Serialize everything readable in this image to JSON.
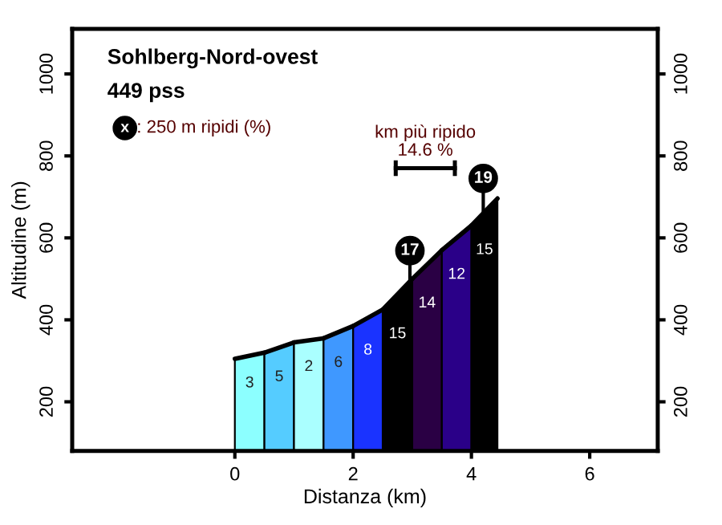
{
  "chart_data": {
    "type": "area",
    "title": "Sohlberg-Nord-ovest",
    "subtitle": "449 pss",
    "xlabel": "Distanza (km)",
    "ylabel": "Altitudine (m)",
    "xlim": [
      -2.75,
      7.15
    ],
    "xticks": [
      0,
      2,
      4,
      6
    ],
    "ylim": [
      80,
      1110
    ],
    "yticks": [
      200,
      400,
      600,
      800,
      1000
    ],
    "y2lim": [
      80,
      1110
    ],
    "y2ticks": [
      200,
      400,
      600,
      800,
      1000
    ],
    "series": [
      {
        "x": [
          0,
          0.5
        ],
        "values": [
          305,
          320
        ],
        "color": "#8cffff"
      },
      {
        "x": [
          0.5,
          1
        ],
        "values": [
          320,
          345
        ],
        "color": "#55ccff"
      },
      {
        "x": [
          1,
          1.5
        ],
        "values": [
          345,
          355
        ],
        "color": "#aaffff"
      },
      {
        "x": [
          1.5,
          2
        ],
        "values": [
          355,
          385
        ],
        "color": "#3f98ff"
      },
      {
        "x": [
          2,
          2.5
        ],
        "values": [
          385,
          425
        ],
        "color": "#1a33ff"
      },
      {
        "x": [
          2.5,
          3
        ],
        "values": [
          425,
          500
        ],
        "color": "#000000"
      },
      {
        "x": [
          3,
          3.5
        ],
        "values": [
          500,
          570
        ],
        "color": "#2a0044"
      },
      {
        "x": [
          3.5,
          4
        ],
        "values": [
          570,
          630
        ],
        "color": "#2a0088"
      },
      {
        "x": [
          4,
          4.44
        ],
        "values": [
          630,
          696
        ],
        "color": "#000000"
      },
      {
        "type": "scatter",
        "x": [
          2.96,
          4.2
        ],
        "values": [
          569,
          745
        ],
        "color": "#000000"
      },
      {
        "type": "line",
        "x": [
          2.72,
          3.72
        ],
        "values": [
          770,
          770
        ],
        "color": "#000000"
      }
    ],
    "annotations": [
      "x",
      ": 250 m ripidi (%)",
      "km più ripido\n14.6 %",
      "17",
      "19",
      "3",
      "5",
      "2",
      "6",
      "8",
      "15",
      "14",
      "12",
      "15"
    ]
  }
}
